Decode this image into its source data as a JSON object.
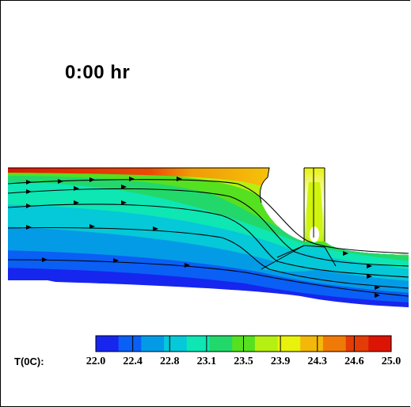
{
  "time_label": "0:00 hr",
  "colorbar": {
    "title": "T(0C):",
    "ticks": [
      "22.0",
      "22.4",
      "22.8",
      "23.1",
      "23.5",
      "23.9",
      "24.3",
      "24.6",
      "25.0"
    ],
    "colors": [
      "#1626ee",
      "#0a5ff5",
      "#049be6",
      "#05c8d8",
      "#0ee6b4",
      "#22d86a",
      "#55e020",
      "#b6ef12",
      "#e8f20c",
      "#f3b80a",
      "#f07a08",
      "#e43c06",
      "#dc1404"
    ]
  }
}
